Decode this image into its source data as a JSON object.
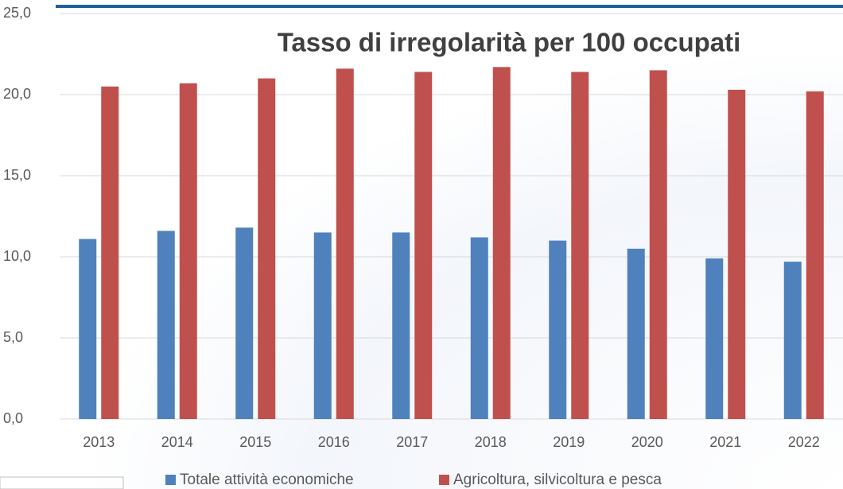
{
  "chart_data": {
    "type": "bar",
    "title": "Tasso di irregolarità per 100 occupati",
    "categories": [
      "2013",
      "2014",
      "2015",
      "2016",
      "2017",
      "2018",
      "2019",
      "2020",
      "2021",
      "2022"
    ],
    "series": [
      {
        "name": "Totale attività economiche",
        "color": "#4f81bd",
        "values": [
          11.1,
          11.6,
          11.8,
          11.5,
          11.5,
          11.2,
          11.0,
          10.5,
          9.9,
          9.7
        ]
      },
      {
        "name": "Agricoltura, silvicoltura e pesca",
        "color": "#c0504d",
        "values": [
          20.5,
          20.7,
          21.0,
          21.6,
          21.4,
          21.7,
          21.4,
          21.5,
          20.3,
          20.2
        ]
      }
    ],
    "ylim": [
      0,
      25
    ],
    "yticks": [
      {
        "value": 0,
        "label": "0,0"
      },
      {
        "value": 5,
        "label": "5,0"
      },
      {
        "value": 10,
        "label": "10,0"
      },
      {
        "value": 15,
        "label": "15,0"
      },
      {
        "value": 20,
        "label": "20,0"
      },
      {
        "value": 25,
        "label": "25,0"
      }
    ],
    "grid": true
  }
}
